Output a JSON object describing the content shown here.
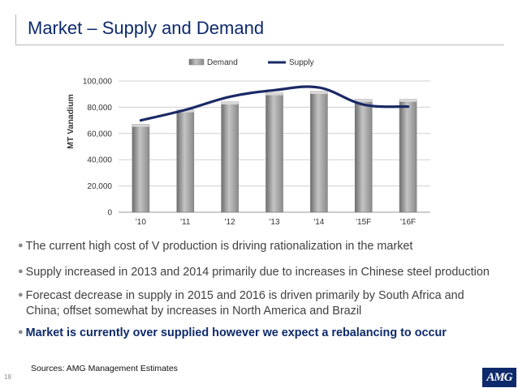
{
  "slide": {
    "title": "Market – Supply and Demand",
    "page_number": "18",
    "sources": "Sources: AMG Management Estimates",
    "logo_text": "AMG",
    "bullets": [
      {
        "text": "The current high cost of V production is driving rationalization in the market",
        "emphasis": false
      },
      {
        "text": "Supply increased in 2013 and 2014 primarily due to increases in Chinese steel production",
        "emphasis": false
      },
      {
        "text": "Forecast decrease in supply  in 2015 and 2016 is driven primarily by South Africa and",
        "cont": "China; offset somewhat by increases in North America and Brazil",
        "emphasis": false
      },
      {
        "text": "Market is currently over supplied however we expect a rebalancing to occur",
        "emphasis": true
      }
    ]
  },
  "chart_data": {
    "type": "bar",
    "title": "",
    "xlabel": "",
    "ylabel": "MT Vanadium",
    "ylim": [
      0,
      100000
    ],
    "yticks": [
      0,
      20000,
      40000,
      60000,
      80000,
      100000
    ],
    "ytick_labels": [
      "0",
      "20,000",
      "40,000",
      "60,000",
      "80,000",
      "100,000"
    ],
    "categories": [
      "'10",
      "'11",
      "'12",
      "'13",
      "'14",
      "'15F",
      "'16F"
    ],
    "grid": true,
    "legend_position": "top",
    "series": [
      {
        "name": "Demand",
        "type": "bar",
        "color": "#9e9e9e",
        "values": [
          67000,
          78000,
          84000,
          91000,
          92000,
          86000,
          86000
        ]
      },
      {
        "name": "Supply",
        "type": "line",
        "color": "#1a2a66",
        "values": [
          70000,
          78000,
          88000,
          93000,
          95000,
          82000,
          80500
        ]
      }
    ]
  }
}
